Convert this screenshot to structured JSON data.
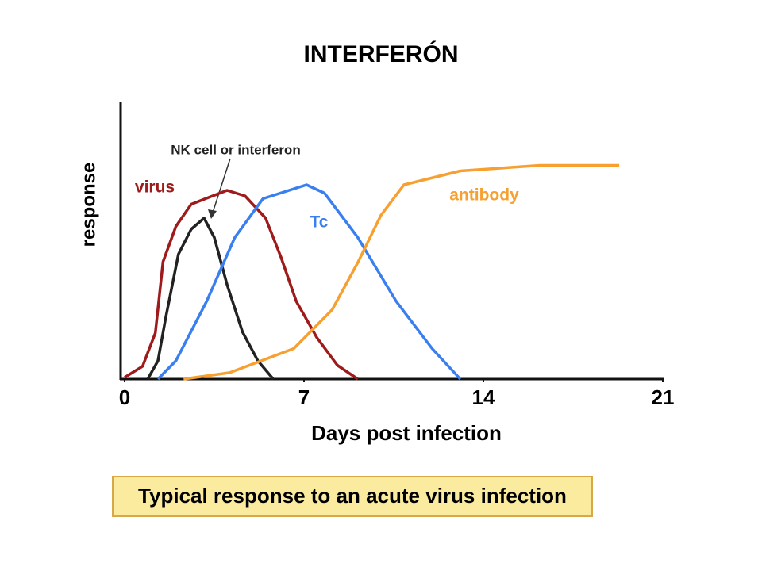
{
  "chart_data": {
    "type": "line",
    "title": "INTERFERÓN",
    "caption": "Typical response to an acute virus infection",
    "x_label": "Days post infection",
    "y_label": "response",
    "xlim": [
      0,
      21
    ],
    "xticks": [
      0,
      7,
      14,
      21
    ],
    "ylim": [
      0,
      100
    ],
    "series": [
      {
        "name": "virus",
        "color": "#9e1b1b",
        "x": [
          0,
          0.7,
          1.2,
          1.5,
          2,
          2.6,
          4,
          4.7,
          5.5,
          6.1,
          6.7,
          7.5,
          8.3,
          9.1
        ],
        "values": [
          0.6,
          4.6,
          16.6,
          42.3,
          55,
          63,
          68,
          66,
          58,
          44,
          28,
          15,
          5,
          0
        ]
      },
      {
        "name": "NK cell or interferon",
        "color": "#222222",
        "x": [
          0.9,
          1.3,
          1.6,
          2.1,
          2.6,
          3.1,
          3.5,
          4,
          4.6,
          5.2,
          5.8
        ],
        "values": [
          0,
          6.6,
          22,
          45,
          54,
          58,
          51,
          34,
          17,
          6.6,
          0
        ]
      },
      {
        "name": "Tc",
        "color": "#3a7ff0",
        "x": [
          1.3,
          2,
          3.2,
          4.3,
          5.4,
          7.1,
          7.8,
          9.1,
          10.6,
          12,
          13.1
        ],
        "values": [
          0,
          6.6,
          28,
          51,
          65,
          70,
          67,
          51,
          28,
          11,
          0
        ]
      },
      {
        "name": "antibody",
        "color": "#f7a030",
        "x": [
          2.3,
          4.1,
          6.6,
          8.1,
          9.1,
          10,
          10.9,
          13.1,
          16.2,
          19.3
        ],
        "values": [
          0,
          2.3,
          11,
          25,
          42,
          59,
          70,
          75,
          77,
          77
        ]
      }
    ]
  }
}
